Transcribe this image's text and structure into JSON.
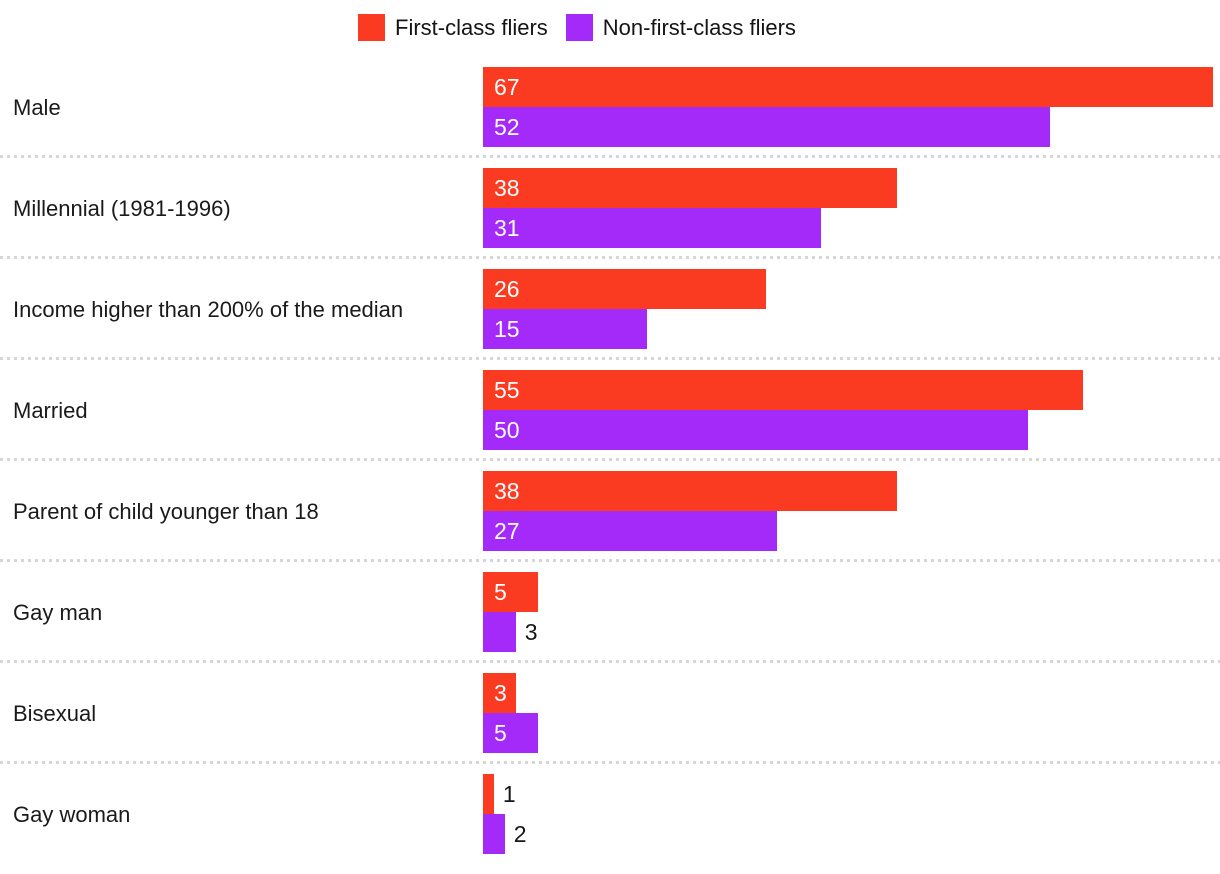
{
  "page": {
    "background": "#ffffff"
  },
  "legend": {
    "items": [
      {
        "label": "First-class fliers",
        "color": "#fb3b21"
      },
      {
        "label": "Non-first-class fliers",
        "color": "#a32af8"
      }
    ]
  },
  "chart_data": {
    "type": "bar",
    "orientation": "horizontal",
    "title": "",
    "xlabel": "",
    "ylabel": "",
    "xlim": [
      0,
      67
    ],
    "grid": false,
    "legend_position": "top",
    "categories": [
      "Male",
      "Millennial (1981-1996)",
      "Income higher than 200% of the median",
      "Married",
      "Parent of child younger than 18",
      "Gay man",
      "Bisexual",
      "Gay woman"
    ],
    "series": [
      {
        "name": "First-class fliers",
        "color": "#fb3b21",
        "values": [
          67,
          38,
          26,
          55,
          38,
          5,
          3,
          1
        ],
        "value_labels_inside": [
          true,
          true,
          true,
          true,
          true,
          true,
          true,
          false
        ]
      },
      {
        "name": "Non-first-class fliers",
        "color": "#a32af8",
        "values": [
          52,
          31,
          15,
          50,
          27,
          3,
          5,
          2
        ],
        "value_labels_inside": [
          true,
          true,
          true,
          true,
          true,
          false,
          true,
          false
        ]
      }
    ],
    "value_label_color_inside": "#ffffff",
    "value_label_color_outside": "#161616",
    "separator_color": "#d6d6d6"
  }
}
